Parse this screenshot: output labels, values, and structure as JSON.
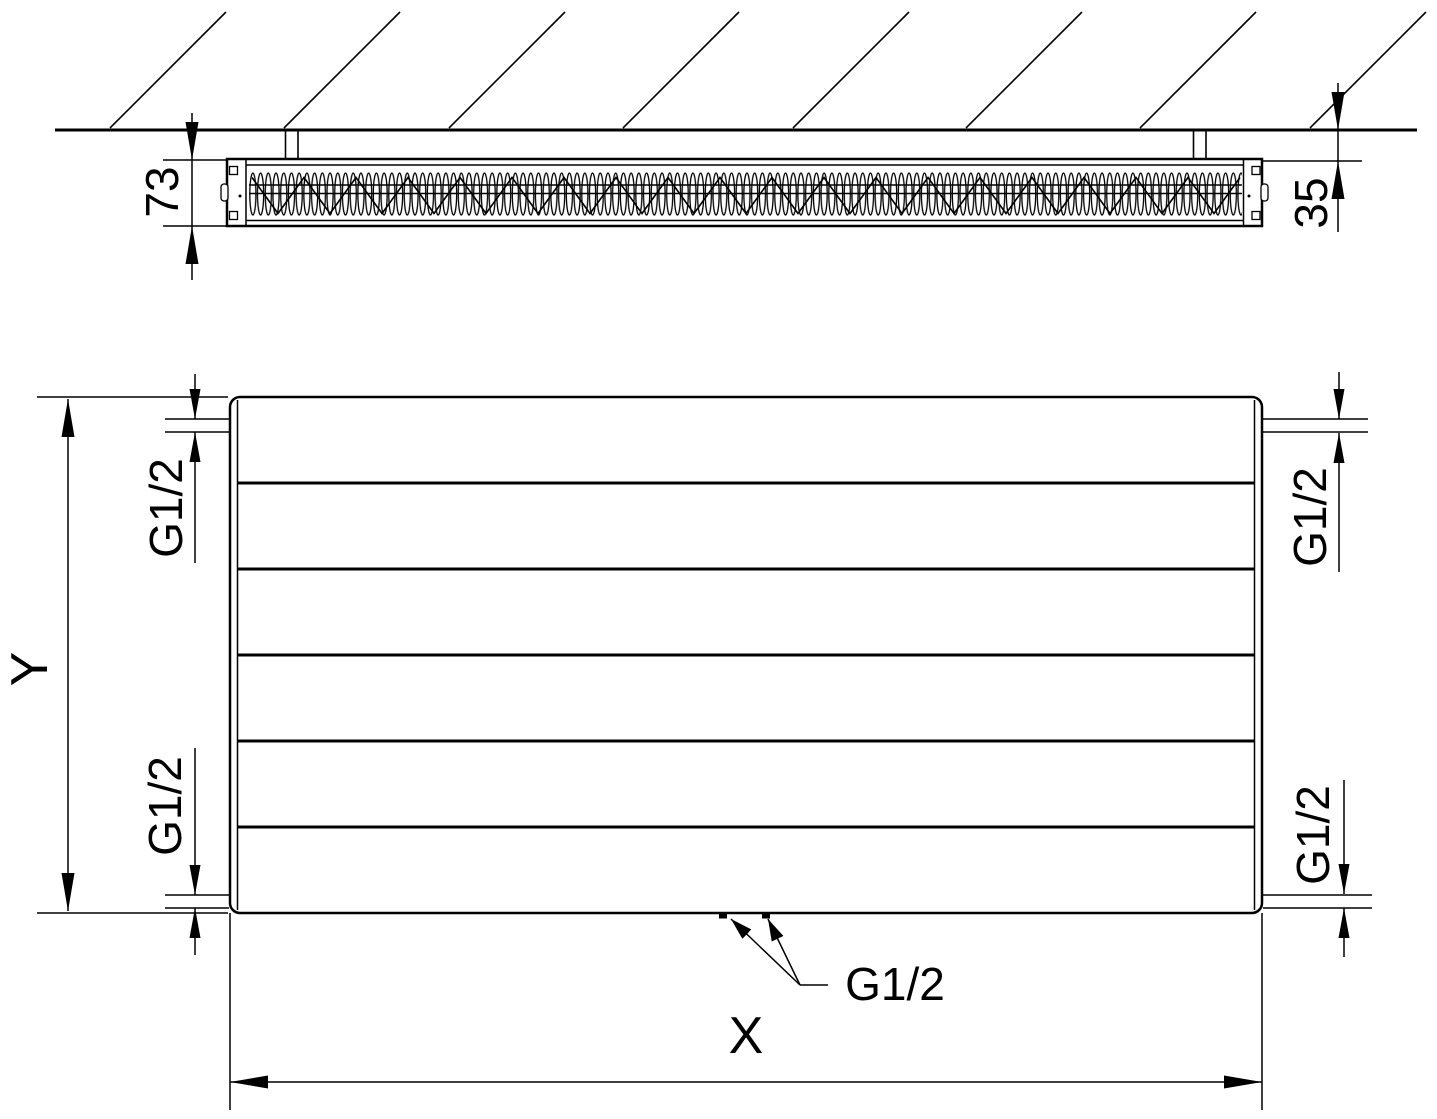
{
  "page": {
    "background_color": "#ffffff",
    "line_color": "#000000",
    "description": "Technical dimensional drawing of a wall-mounted panel radiator: top cross-section view and front elevation view"
  },
  "top_view": {
    "dim_depth": "73",
    "dim_wall_gap": "35"
  },
  "front_view": {
    "dim_height": "Y",
    "dim_width": "X",
    "thread_top_left": "G1/2",
    "thread_bottom_left": "G1/2",
    "thread_top_right": "G1/2",
    "thread_bottom_right": "G1/2",
    "thread_bottom_center": "G1/2"
  }
}
